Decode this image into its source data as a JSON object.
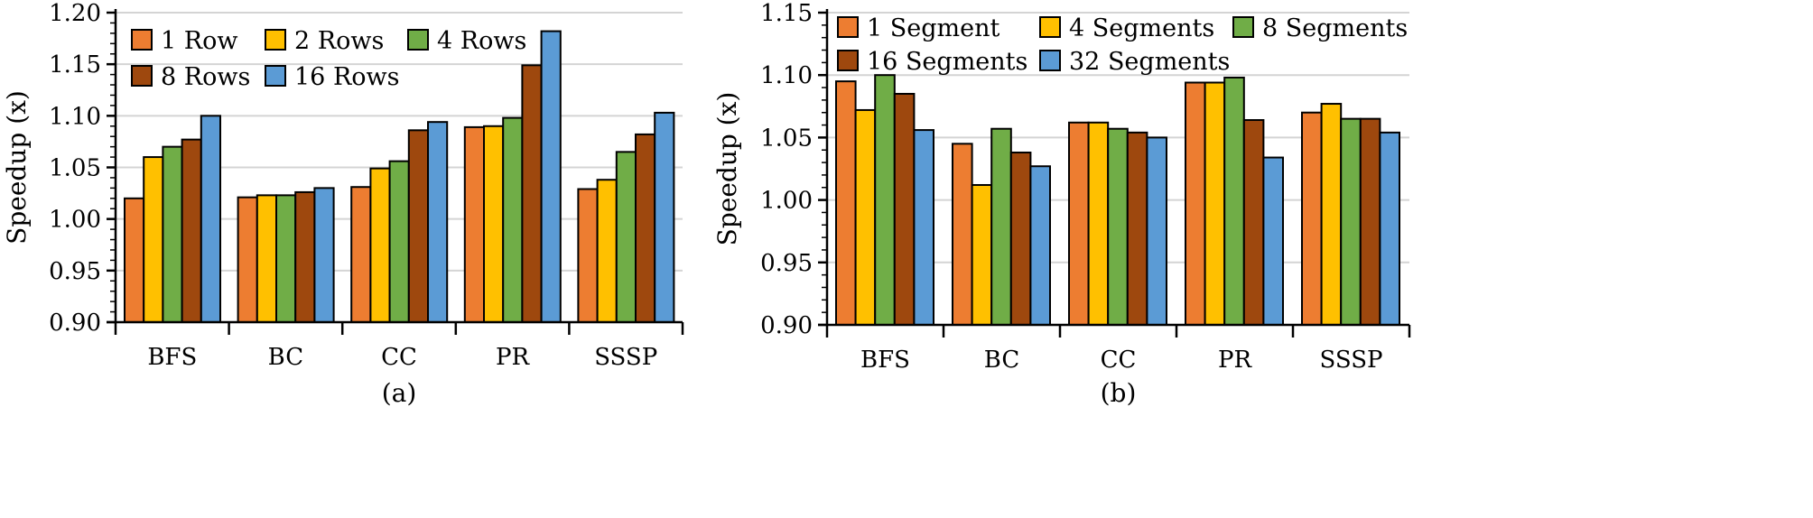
{
  "chart_data": [
    {
      "type": "bar",
      "caption": "(a)",
      "ylabel": "Speedup (x)",
      "ylim": [
        0.9,
        1.2
      ],
      "yticks": [
        "0.90",
        "0.95",
        "1.00",
        "1.05",
        "1.10",
        "1.15",
        "1.20"
      ],
      "categories": [
        "BFS",
        "BC",
        "CC",
        "PR",
        "SSSP"
      ],
      "grid": true,
      "legend_position": "top-left",
      "series": [
        {
          "name": "1 Row",
          "color": "#ed7d31",
          "values": [
            1.02,
            1.021,
            1.031,
            1.089,
            1.029
          ]
        },
        {
          "name": "2 Rows",
          "color": "#ffc000",
          "values": [
            1.06,
            1.023,
            1.049,
            1.09,
            1.038
          ]
        },
        {
          "name": "4 Rows",
          "color": "#70ad47",
          "values": [
            1.07,
            1.023,
            1.056,
            1.098,
            1.065
          ]
        },
        {
          "name": "8 Rows",
          "color": "#9e480e",
          "values": [
            1.077,
            1.026,
            1.086,
            1.149,
            1.082
          ]
        },
        {
          "name": "16 Rows",
          "color": "#5b9bd5",
          "values": [
            1.1,
            1.03,
            1.094,
            1.182,
            1.103
          ]
        }
      ]
    },
    {
      "type": "bar",
      "caption": "(b)",
      "ylabel": "Speedup (x)",
      "ylim": [
        0.9,
        1.15
      ],
      "yticks": [
        "0.90",
        "0.95",
        "1.00",
        "1.05",
        "1.10",
        "1.15"
      ],
      "categories": [
        "BFS",
        "BC",
        "CC",
        "PR",
        "SSSP"
      ],
      "grid": true,
      "legend_position": "top",
      "series": [
        {
          "name": "1 Segment",
          "color": "#ed7d31",
          "values": [
            1.095,
            1.045,
            1.062,
            1.094,
            1.07
          ]
        },
        {
          "name": "4 Segments",
          "color": "#ffc000",
          "values": [
            1.072,
            1.012,
            1.062,
            1.094,
            1.077
          ]
        },
        {
          "name": "8 Segments",
          "color": "#70ad47",
          "values": [
            1.1,
            1.057,
            1.057,
            1.098,
            1.065
          ]
        },
        {
          "name": "16 Segments",
          "color": "#9e480e",
          "values": [
            1.085,
            1.038,
            1.054,
            1.064,
            1.065
          ]
        },
        {
          "name": "32 Segments",
          "color": "#5b9bd5",
          "values": [
            1.056,
            1.027,
            1.05,
            1.034,
            1.054
          ]
        }
      ]
    }
  ]
}
